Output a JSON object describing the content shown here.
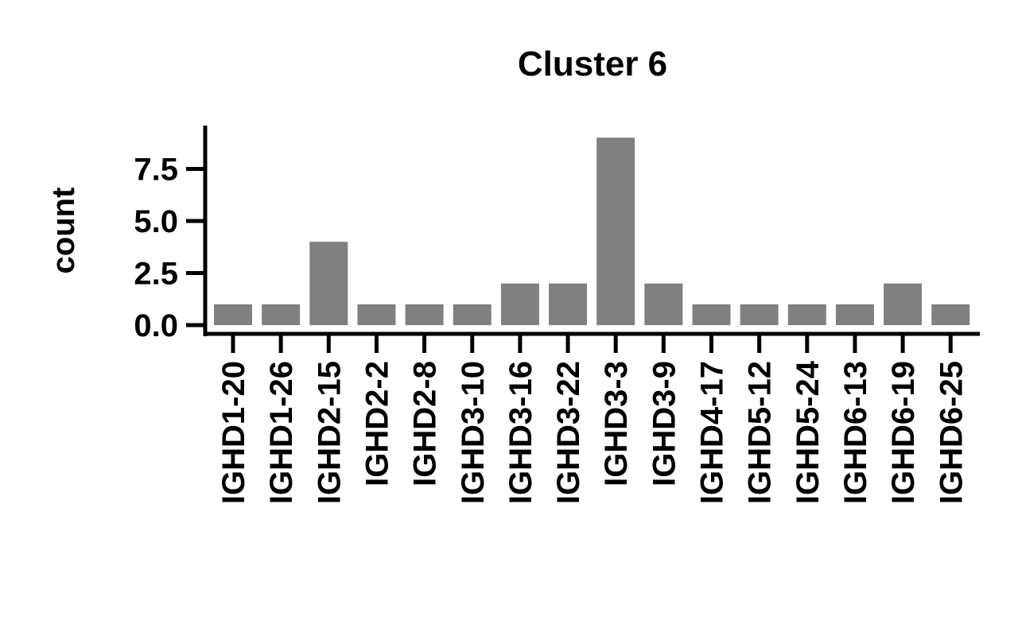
{
  "chart_data": {
    "type": "bar",
    "title": "Cluster 6",
    "xlabel": "",
    "ylabel": "count",
    "categories": [
      "IGHD1-20",
      "IGHD1-26",
      "IGHD2-15",
      "IGHD2-2",
      "IGHD2-8",
      "IGHD3-10",
      "IGHD3-16",
      "IGHD3-22",
      "IGHD3-3",
      "IGHD3-9",
      "IGHD4-17",
      "IGHD5-12",
      "IGHD5-24",
      "IGHD6-13",
      "IGHD6-19",
      "IGHD6-25"
    ],
    "values": [
      1,
      1,
      4,
      1,
      1,
      1,
      2,
      2,
      9,
      2,
      1,
      1,
      1,
      1,
      2,
      1
    ],
    "yticks": [
      "0.0",
      "2.5",
      "5.0",
      "7.5"
    ],
    "ytick_values": [
      0,
      2.5,
      5,
      7.5
    ],
    "ylim": [
      0,
      9.5
    ],
    "grid": false,
    "legend": "none",
    "bar_color": "#808080",
    "axis_color": "#000000"
  }
}
